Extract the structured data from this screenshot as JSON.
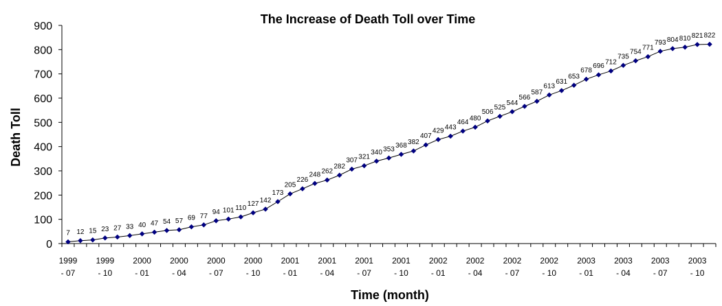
{
  "chart_data": {
    "type": "line",
    "title": "The Increase of Death Toll over Time",
    "xlabel": "Time (month)",
    "ylabel": "Death Toll",
    "ylim": [
      0,
      900
    ],
    "yticks": [
      0,
      100,
      200,
      300,
      400,
      500,
      600,
      700,
      800,
      900
    ],
    "grid": false,
    "legend": "none",
    "marker": "diamond",
    "series_color": "#000080",
    "line_color": "#000000",
    "x_tick_labels": [
      {
        "line1": "1999",
        "line2": "- 07"
      },
      {
        "line1": "1999",
        "line2": "- 10"
      },
      {
        "line1": "2000",
        "line2": "- 01"
      },
      {
        "line1": "2000",
        "line2": "- 04"
      },
      {
        "line1": "2000",
        "line2": "- 07"
      },
      {
        "line1": "2000",
        "line2": "- 10"
      },
      {
        "line1": "2001",
        "line2": "- 01"
      },
      {
        "line1": "2001",
        "line2": "- 04"
      },
      {
        "line1": "2001",
        "line2": "- 07"
      },
      {
        "line1": "2001",
        "line2": "- 10"
      },
      {
        "line1": "2002",
        "line2": "- 01"
      },
      {
        "line1": "2002",
        "line2": "- 04"
      },
      {
        "line1": "2002",
        "line2": "- 07"
      },
      {
        "line1": "2002",
        "line2": "- 10"
      },
      {
        "line1": "2003",
        "line2": "- 01"
      },
      {
        "line1": "2003",
        "line2": "- 04"
      },
      {
        "line1": "2003",
        "line2": "- 07"
      },
      {
        "line1": "2003",
        "line2": "- 10"
      }
    ],
    "values": [
      7,
      12,
      15,
      23,
      27,
      33,
      40,
      47,
      54,
      57,
      69,
      77,
      94,
      101,
      110,
      127,
      142,
      173,
      205,
      226,
      248,
      262,
      282,
      307,
      321,
      340,
      353,
      368,
      382,
      407,
      429,
      443,
      464,
      480,
      506,
      525,
      544,
      566,
      587,
      613,
      631,
      653,
      678,
      696,
      712,
      735,
      754,
      771,
      793,
      804,
      810,
      821,
      822
    ]
  }
}
